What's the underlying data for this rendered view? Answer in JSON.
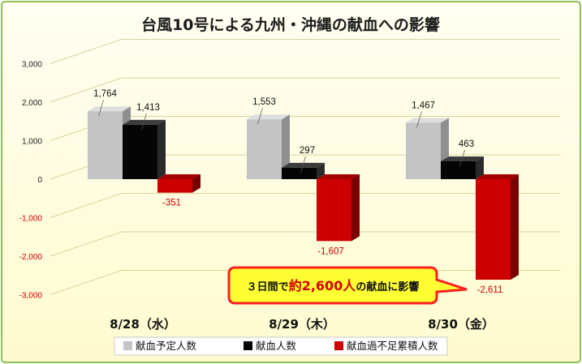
{
  "chart_data": {
    "type": "bar",
    "title": "台風10号による九州・沖縄の献血への影響",
    "categories": [
      "8/28（水）",
      "8/29（木）",
      "8/30（金）"
    ],
    "series": [
      {
        "name": "献血予定人数",
        "values": [
          1764,
          1553,
          1467
        ],
        "labels": [
          "1,764",
          "1,553",
          "1,467"
        ],
        "color": "#c0c0c0"
      },
      {
        "name": "献血人数",
        "values": [
          1413,
          297,
          463
        ],
        "labels": [
          "1,413",
          "297",
          "463"
        ],
        "color": "#0a0a0a"
      },
      {
        "name": "献血過不足累積人数",
        "values": [
          -351,
          -1607,
          -2611
        ],
        "labels": [
          "-351",
          "-1,607",
          "-2,611"
        ],
        "color": "#cc0000"
      }
    ],
    "ylim": [
      -3000,
      3000
    ],
    "yticks": [
      3000,
      2000,
      1000,
      0,
      -1000,
      -2000,
      -3000
    ],
    "ytick_labels": [
      "3,000",
      "2,000",
      "1,000",
      "0",
      "-1,000",
      "-2,000",
      "-3,000"
    ],
    "grid": true,
    "legend_position": "bottom",
    "colors": {
      "background": "#fffde0",
      "border": "#8fbf5a",
      "negative_text": "#cc0000",
      "gridline": "#d4d090"
    }
  },
  "annotation": {
    "prefix": "３日間で",
    "highlight": "約2,600人",
    "suffix": "の献血に影響"
  }
}
